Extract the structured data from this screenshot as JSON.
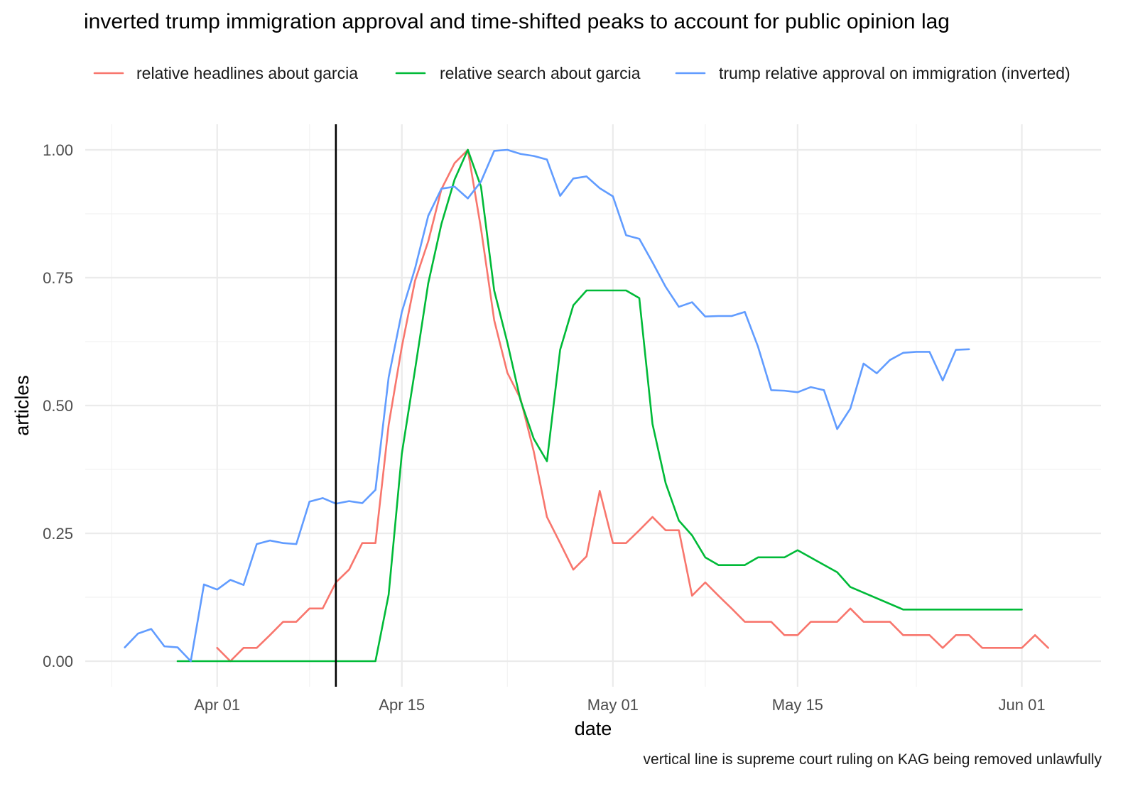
{
  "chart_data": {
    "type": "line",
    "title": "inverted trump immigration approval and time-shifted peaks to account for public opinion lag",
    "xlabel": "date",
    "ylabel": "articles",
    "caption": "vertical line is supreme court ruling on KAG being removed unlawfully",
    "x_ticks": [
      {
        "date": "2025-04-01",
        "label": "Apr 01"
      },
      {
        "date": "2025-04-15",
        "label": "Apr 15"
      },
      {
        "date": "2025-05-01",
        "label": "May 01"
      },
      {
        "date": "2025-05-15",
        "label": "May 15"
      },
      {
        "date": "2025-06-01",
        "label": "Jun 01"
      }
    ],
    "x_minor_ticks": [
      "2025-03-24",
      "2025-04-08",
      "2025-04-23",
      "2025-05-08",
      "2025-05-24"
    ],
    "xlim": [
      "2025-03-22",
      "2025-06-07"
    ],
    "y_ticks": [
      {
        "value": 0,
        "label": "0.00"
      },
      {
        "value": 0.25,
        "label": "0.25"
      },
      {
        "value": 0.5,
        "label": "0.50"
      },
      {
        "value": 0.75,
        "label": "0.75"
      },
      {
        "value": 1,
        "label": "1.00"
      }
    ],
    "ylim": [
      -0.05,
      1.05
    ],
    "grid": true,
    "legend_position": "top",
    "vline": {
      "date": "2025-04-10",
      "color": "#000000"
    },
    "series": [
      {
        "name": "relative headlines about garcia",
        "color": "#F8766D",
        "x": [
          "2025-04-01",
          "2025-04-02",
          "2025-04-03",
          "2025-04-04",
          "2025-04-05",
          "2025-04-06",
          "2025-04-07",
          "2025-04-08",
          "2025-04-09",
          "2025-04-10",
          "2025-04-11",
          "2025-04-12",
          "2025-04-13",
          "2025-04-14",
          "2025-04-15",
          "2025-04-16",
          "2025-04-17",
          "2025-04-18",
          "2025-04-19",
          "2025-04-20",
          "2025-04-21",
          "2025-04-22",
          "2025-04-23",
          "2025-04-24",
          "2025-04-25",
          "2025-04-26",
          "2025-04-27",
          "2025-04-28",
          "2025-04-29",
          "2025-04-30",
          "2025-05-01",
          "2025-05-02",
          "2025-05-03",
          "2025-05-04",
          "2025-05-05",
          "2025-05-06",
          "2025-05-07",
          "2025-05-08",
          "2025-05-09",
          "2025-05-10",
          "2025-05-11",
          "2025-05-12",
          "2025-05-13",
          "2025-05-14",
          "2025-05-15",
          "2025-05-16",
          "2025-05-17",
          "2025-05-18",
          "2025-05-19",
          "2025-05-20",
          "2025-05-21",
          "2025-05-22",
          "2025-05-23",
          "2025-05-24",
          "2025-05-25",
          "2025-05-26",
          "2025-05-27",
          "2025-05-28",
          "2025-05-29",
          "2025-05-30",
          "2025-05-31",
          "2025-06-01",
          "2025-06-02",
          "2025-06-03"
        ],
        "y": [
          0.026,
          0,
          0.026,
          0.026,
          0.051,
          0.077,
          0.077,
          0.103,
          0.103,
          0.154,
          0.179,
          0.231,
          0.231,
          0.462,
          0.615,
          0.744,
          0.821,
          0.923,
          0.974,
          1.0,
          0.846,
          0.667,
          0.564,
          0.513,
          0.41,
          0.282,
          0.231,
          0.179,
          0.205,
          0.333,
          0.231,
          0.231,
          0.256,
          0.282,
          0.256,
          0.256,
          0.128,
          0.154,
          0.128,
          0.103,
          0.077,
          0.077,
          0.077,
          0.051,
          0.051,
          0.077,
          0.077,
          0.077,
          0.103,
          0.077,
          0.077,
          0.077,
          0.051,
          0.051,
          0.051,
          0.026,
          0.051,
          0.051,
          0.026,
          0.026,
          0.026,
          0.026,
          0.051,
          0.026
        ]
      },
      {
        "name": "relative search about garcia",
        "color": "#00BA38",
        "x": [
          "2025-03-29",
          "2025-04-12",
          "2025-04-13",
          "2025-04-14",
          "2025-04-15",
          "2025-04-16",
          "2025-04-17",
          "2025-04-18",
          "2025-04-19",
          "2025-04-20",
          "2025-04-21",
          "2025-04-22",
          "2025-04-23",
          "2025-04-24",
          "2025-04-25",
          "2025-04-26",
          "2025-04-27",
          "2025-04-28",
          "2025-04-29",
          "2025-04-30",
          "2025-05-01",
          "2025-05-02",
          "2025-05-03",
          "2025-05-04",
          "2025-05-05",
          "2025-05-06",
          "2025-05-07",
          "2025-05-08",
          "2025-05-09",
          "2025-05-11",
          "2025-05-12",
          "2025-05-14",
          "2025-05-15",
          "2025-05-18",
          "2025-05-19",
          "2025-05-23",
          "2025-06-01"
        ],
        "y": [
          0,
          0,
          0,
          0.13,
          0.406,
          0.57,
          0.739,
          0.855,
          0.942,
          1.0,
          0.928,
          0.725,
          0.623,
          0.51,
          0.435,
          0.391,
          0.609,
          0.696,
          0.725,
          0.725,
          0.725,
          0.725,
          0.71,
          0.464,
          0.348,
          0.275,
          0.246,
          0.203,
          0.188,
          0.188,
          0.203,
          0.203,
          0.217,
          0.174,
          0.145,
          0.101,
          0.101
        ]
      },
      {
        "name": "trump relative approval on immigration (inverted)",
        "color": "#619CFF",
        "x": [
          "2025-03-25",
          "2025-03-26",
          "2025-03-27",
          "2025-03-28",
          "2025-03-29",
          "2025-03-30",
          "2025-03-31",
          "2025-04-01",
          "2025-04-02",
          "2025-04-03",
          "2025-04-04",
          "2025-04-05",
          "2025-04-06",
          "2025-04-07",
          "2025-04-08",
          "2025-04-09",
          "2025-04-10",
          "2025-04-11",
          "2025-04-12",
          "2025-04-13",
          "2025-04-14",
          "2025-04-15",
          "2025-04-16",
          "2025-04-17",
          "2025-04-18",
          "2025-04-19",
          "2025-04-20",
          "2025-04-21",
          "2025-04-22",
          "2025-04-23",
          "2025-04-24",
          "2025-04-25",
          "2025-04-26",
          "2025-04-27",
          "2025-04-28",
          "2025-04-29",
          "2025-04-30",
          "2025-05-01",
          "2025-05-02",
          "2025-05-03",
          "2025-05-04",
          "2025-05-05",
          "2025-05-06",
          "2025-05-07",
          "2025-05-08",
          "2025-05-09",
          "2025-05-10",
          "2025-05-11",
          "2025-05-12",
          "2025-05-13",
          "2025-05-14",
          "2025-05-15",
          "2025-05-16",
          "2025-05-17",
          "2025-05-18",
          "2025-05-19",
          "2025-05-20",
          "2025-05-21",
          "2025-05-22",
          "2025-05-23",
          "2025-05-24",
          "2025-05-25",
          "2025-05-26",
          "2025-05-27",
          "2025-05-28"
        ],
        "y": [
          0.027,
          0.054,
          0.063,
          0.029,
          0.027,
          0.0,
          0.15,
          0.14,
          0.159,
          0.149,
          0.229,
          0.236,
          0.231,
          0.229,
          0.312,
          0.319,
          0.308,
          0.313,
          0.309,
          0.335,
          0.555,
          0.683,
          0.768,
          0.871,
          0.924,
          0.928,
          0.905,
          0.938,
          0.998,
          1.0,
          0.992,
          0.988,
          0.981,
          0.91,
          0.944,
          0.948,
          0.925,
          0.909,
          0.833,
          0.826,
          0.78,
          0.732,
          0.693,
          0.702,
          0.674,
          0.675,
          0.675,
          0.683,
          0.615,
          0.53,
          0.529,
          0.526,
          0.536,
          0.53,
          0.454,
          0.494,
          0.582,
          0.563,
          0.589,
          0.603,
          0.605,
          0.605,
          0.549,
          0.609,
          0.61
        ]
      }
    ]
  }
}
